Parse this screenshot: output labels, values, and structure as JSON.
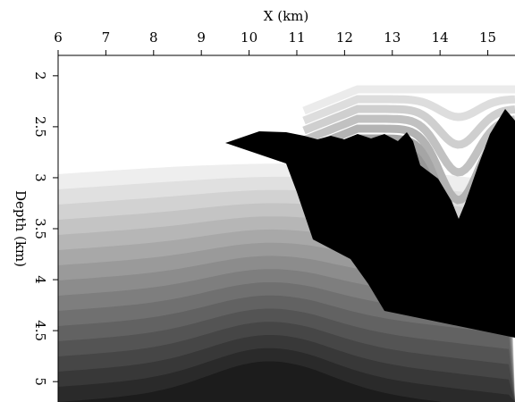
{
  "chart_data": {
    "type": "image",
    "x_label": "X (km)",
    "y_label": "Depth (km)",
    "xlim": [
      6,
      15.57
    ],
    "xticks": [
      6,
      7,
      8,
      9,
      10,
      11,
      12,
      13,
      14,
      15
    ],
    "ylim": [
      1.8,
      5.2
    ],
    "yticks": [
      2,
      2.5,
      3,
      3.5,
      4,
      4.5,
      5
    ]
  }
}
